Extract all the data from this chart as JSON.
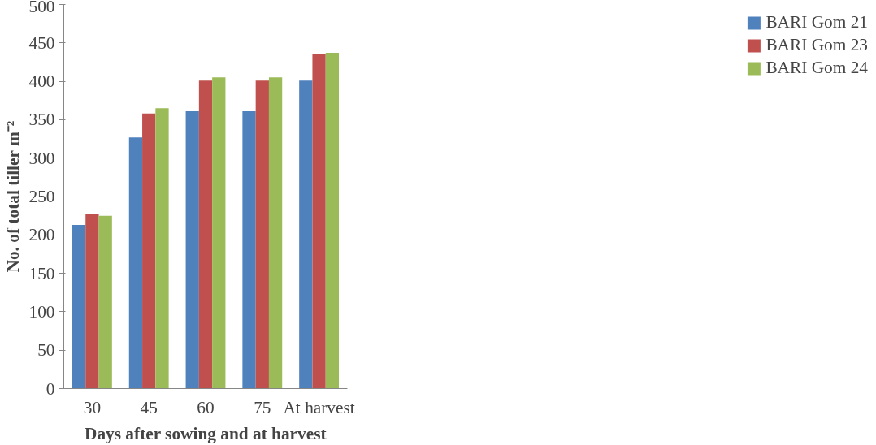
{
  "chart_data": {
    "type": "bar",
    "xlabel": "Days after sowing and at harvest",
    "ylabel": "No. of total tiller m⁻²",
    "categories": [
      "30",
      "45",
      "60",
      "75",
      "At harvest"
    ],
    "series": [
      {
        "name": "BARI Gom 21",
        "color": "#4f81bd",
        "values": [
          213,
          327,
          361,
          361,
          401
        ]
      },
      {
        "name": "BARI Gom 23",
        "color": "#c0504d",
        "values": [
          227,
          358,
          401,
          401,
          435
        ]
      },
      {
        "name": "BARI Gom 24",
        "color": "#9bbb59",
        "values": [
          225,
          365,
          405,
          405,
          437
        ]
      }
    ],
    "ylim": [
      0,
      500
    ],
    "yticks": [
      0,
      50,
      100,
      150,
      200,
      250,
      300,
      350,
      400,
      450,
      500
    ],
    "grid": false,
    "legend": "right"
  }
}
